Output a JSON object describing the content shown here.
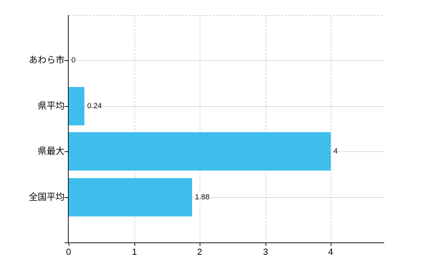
{
  "chart_data": {
    "type": "bar",
    "orientation": "horizontal",
    "title": "",
    "categories": [
      "あわら市",
      "県平均",
      "県最大",
      "全国平均"
    ],
    "values": [
      0,
      0.24,
      4,
      1.88
    ],
    "value_labels": [
      "0",
      "0.24",
      "4",
      "1.88"
    ],
    "x_tick_labels": [
      "0",
      "1",
      "2",
      "3",
      "4"
    ],
    "x_tick_values": [
      0,
      1,
      2,
      3,
      4
    ],
    "xlim": [
      0,
      4.81
    ],
    "grid": true,
    "legend": false,
    "colors": {
      "bar": "#3FBEEC",
      "h_gridline": "#d3dcd3",
      "v_gridline_dashed": "#d5cdd5",
      "axis": "#000000",
      "text": "#000000",
      "background": "#ffffff"
    }
  }
}
